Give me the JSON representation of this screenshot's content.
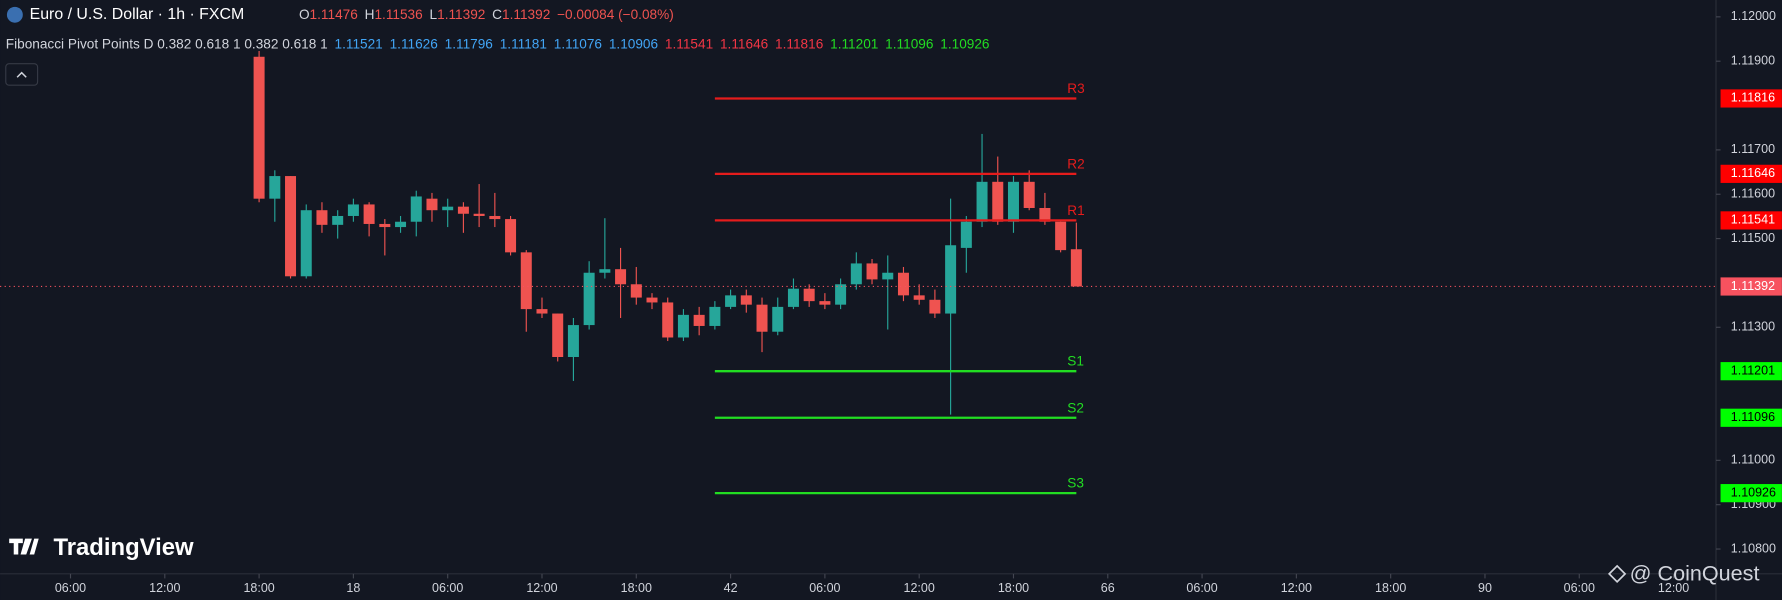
{
  "header": {
    "symbol": "Euro / U.S. Dollar · 1h · FXCM",
    "open_label": "O",
    "open": 1.11476,
    "high_label": "H",
    "high": 1.11536,
    "low_label": "L",
    "low": 1.11392,
    "close_label": "C",
    "close": 1.11392,
    "change": "−0.00084 (−0.08%)"
  },
  "indicator": {
    "name": "Fibonacci Pivot Points D 0.382 0.618 1 0.382 0.618 1",
    "groups": [
      {
        "color": "#42a5f5",
        "values": [
          1.11521,
          1.11626,
          1.11796,
          1.11181,
          1.11076,
          1.10906
        ]
      },
      {
        "color": "#f23645",
        "values": [
          1.11541,
          1.11646,
          1.11816
        ]
      },
      {
        "color": "#22dd22",
        "values": [
          1.11201,
          1.11096,
          1.10926
        ]
      }
    ]
  },
  "chart_data": {
    "type": "candlestick",
    "x": [
      12,
      13,
      14,
      15,
      16,
      17,
      18,
      19,
      20,
      21,
      22,
      23,
      24,
      25,
      26,
      27,
      28,
      29,
      30,
      31,
      32,
      33,
      34,
      35,
      36,
      37,
      38,
      39,
      40,
      41,
      42,
      43,
      44,
      45,
      46,
      47,
      48,
      49,
      50,
      51,
      52,
      53,
      54,
      55,
      56,
      57,
      58,
      59,
      60,
      61,
      62,
      63,
      64
    ],
    "open": [
      1.1191,
      1.1159,
      1.11641,
      1.11415,
      1.11564,
      1.11531,
      1.11551,
      1.11577,
      1.11533,
      1.11526,
      1.11538,
      1.1159,
      1.11564,
      1.11572,
      1.11556,
      1.11551,
      1.11544,
      1.11469,
      1.11341,
      1.11331,
      1.11233,
      1.11305,
      1.11423,
      1.11431,
      1.11397,
      1.11367,
      1.11356,
      1.11277,
      1.11328,
      1.11303,
      1.11346,
      1.11372,
      1.11351,
      1.1129,
      1.11346,
      1.11387,
      1.11359,
      1.11351,
      1.11397,
      1.11444,
      1.11408,
      1.11423,
      1.11372,
      1.11362,
      1.11331,
      1.11479,
      1.11538,
      1.11628,
      1.11538,
      1.11628,
      1.11569,
      1.11538,
      1.11476
    ],
    "high": [
      1.11923,
      1.11654,
      1.11641,
      1.11577,
      1.11582,
      1.11564,
      1.1159,
      1.11582,
      1.11544,
      1.11551,
      1.11608,
      1.11603,
      1.1159,
      1.11582,
      1.11623,
      1.11603,
      1.11551,
      1.11474,
      1.11367,
      1.11331,
      1.11321,
      1.11449,
      1.11546,
      1.11479,
      1.11436,
      1.11377,
      1.11367,
      1.11341,
      1.11346,
      1.11359,
      1.11385,
      1.11385,
      1.11367,
      1.11367,
      1.1141,
      1.11397,
      1.11377,
      1.1141,
      1.11469,
      1.11454,
      1.11462,
      1.11436,
      1.11397,
      1.11385,
      1.1159,
      1.11551,
      1.11736,
      1.11685,
      1.11641,
      1.11654,
      1.11603,
      1.11538,
      1.11536
    ],
    "low": [
      1.11582,
      1.11538,
      1.1141,
      1.1141,
      1.11513,
      1.115,
      1.11538,
      1.11505,
      1.11462,
      1.11513,
      1.11505,
      1.11538,
      1.11526,
      1.11513,
      1.11526,
      1.11526,
      1.11462,
      1.1129,
      1.11321,
      1.11223,
      1.11179,
      1.11295,
      1.1141,
      1.11321,
      1.11351,
      1.11341,
      1.11269,
      1.11269,
      1.11282,
      1.11295,
      1.11341,
      1.11333,
      1.11244,
      1.11282,
      1.11341,
      1.11346,
      1.11341,
      1.11341,
      1.11385,
      1.11397,
      1.11295,
      1.11359,
      1.11351,
      1.11321,
      1.11103,
      1.11423,
      1.11526,
      1.11531,
      1.11513,
      1.11564,
      1.11531,
      1.11469,
      1.11392
    ],
    "close": [
      1.1159,
      1.11641,
      1.11415,
      1.11564,
      1.11531,
      1.11551,
      1.11577,
      1.11533,
      1.11526,
      1.11538,
      1.11595,
      1.11564,
      1.11572,
      1.11556,
      1.11551,
      1.11544,
      1.11469,
      1.11341,
      1.11331,
      1.11233,
      1.11305,
      1.11423,
      1.11431,
      1.11397,
      1.11367,
      1.11356,
      1.11277,
      1.11328,
      1.11303,
      1.11346,
      1.11372,
      1.11351,
      1.1129,
      1.11346,
      1.11387,
      1.11359,
      1.11351,
      1.11397,
      1.11444,
      1.11408,
      1.11423,
      1.11372,
      1.11362,
      1.11331,
      1.11485,
      1.11538,
      1.11628,
      1.11538,
      1.11628,
      1.11569,
      1.11538,
      1.11474,
      1.11392
    ],
    "up_color": "#26a69a",
    "down_color": "#ef5350",
    "last_price_color": "#f7525f",
    "xlim": [
      -4.48,
      104.7
    ],
    "xticks": [
      {
        "value": 0,
        "label": "06:00"
      },
      {
        "value": 6,
        "label": "12:00"
      },
      {
        "value": 12,
        "label": "18:00"
      },
      18,
      {
        "value": 24,
        "label": "06:00"
      },
      {
        "value": 30,
        "label": "12:00"
      },
      {
        "value": 36,
        "label": "18:00"
      },
      42,
      {
        "value": 48,
        "label": "06:00"
      },
      {
        "value": 54,
        "label": "12:00"
      },
      {
        "value": 60,
        "label": "18:00"
      },
      66,
      {
        "value": 72,
        "label": "06:00"
      },
      {
        "value": 78,
        "label": "12:00"
      },
      {
        "value": 84,
        "label": "18:00"
      },
      90,
      {
        "value": 96,
        "label": "06:00"
      },
      {
        "value": 102,
        "label": "12:00"
      }
    ],
    "ylim": [
      1.10744,
      1.12038
    ],
    "yticks": [
      {
        "value": 1.12,
        "label": "1.12000"
      },
      {
        "value": 1.119,
        "label": "1.11900"
      },
      {
        "value": 1.117,
        "label": "1.11700"
      },
      {
        "value": 1.116,
        "label": "1.11600"
      },
      {
        "value": 1.115,
        "label": "1.11500"
      },
      {
        "value": 1.113,
        "label": "1.11300"
      },
      {
        "value": 1.11,
        "label": "1.11000"
      },
      {
        "value": 1.109,
        "label": "1.10900"
      },
      {
        "value": 1.108,
        "label": "1.10800"
      }
    ],
    "level_x": [
      41,
      64
    ],
    "levels": [
      {
        "label": "R3",
        "value": 1.11816,
        "color": "#e51c1c",
        "tag_color": "#ff0000",
        "tag_text": "#ffffff"
      },
      {
        "label": "R2",
        "value": 1.11646,
        "color": "#e51c1c",
        "tag_color": "#ff0000",
        "tag_text": "#ffffff"
      },
      {
        "label": "R1",
        "value": 1.11541,
        "color": "#e51c1c",
        "tag_color": "#ff0000",
        "tag_text": "#ffffff"
      },
      {
        "label": "S1",
        "value": 1.11201,
        "color": "#22dd22",
        "tag_color": "#00ff00",
        "tag_text": "#000000"
      },
      {
        "label": "S2",
        "value": 1.11096,
        "color": "#22dd22",
        "tag_color": "#00ff00",
        "tag_text": "#000000"
      },
      {
        "label": "S3",
        "value": 1.10926,
        "color": "#22dd22",
        "tag_color": "#00ff00",
        "tag_text": "#000000"
      }
    ]
  },
  "branding": {
    "logo": "TradingView",
    "credit": "@ CoinQuest"
  }
}
